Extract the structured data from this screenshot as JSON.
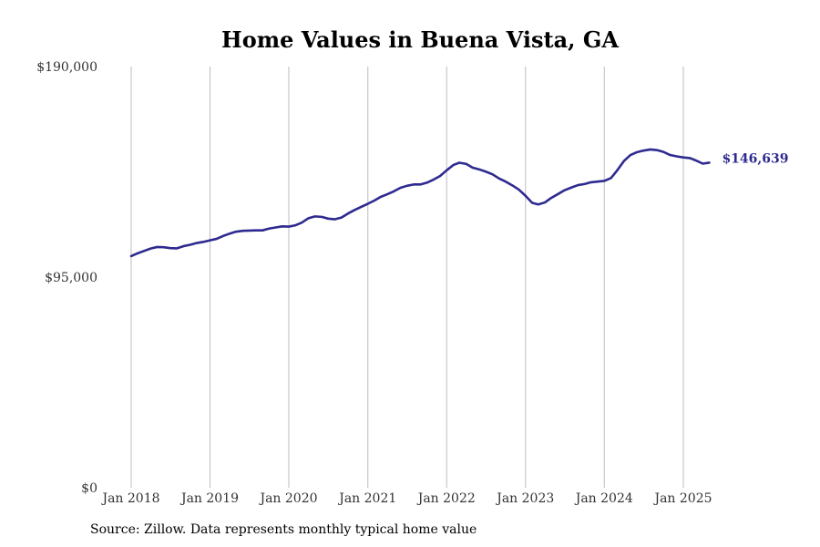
{
  "chart_data": {
    "type": "line",
    "title": "Home Values in Buena Vista, GA",
    "xlabel": "",
    "ylabel": "",
    "ylim": [
      0,
      190000
    ],
    "yticks": [
      {
        "value": 0,
        "label": "$0"
      },
      {
        "value": 95000,
        "label": "$95,000"
      },
      {
        "value": 190000,
        "label": "$190,000"
      }
    ],
    "xticks": [
      "Jan 2018",
      "Jan 2019",
      "Jan 2020",
      "Jan 2021",
      "Jan 2022",
      "Jan 2023",
      "Jan 2024",
      "Jan 2025"
    ],
    "grid": "vertical",
    "color": "#2e2a8f",
    "end_label": "$146,639",
    "series": [
      {
        "x": [
          "2018-01",
          "2018-02",
          "2018-03",
          "2018-04",
          "2018-05",
          "2018-06",
          "2018-07",
          "2018-08",
          "2018-09",
          "2018-10",
          "2018-11",
          "2018-12",
          "2019-01",
          "2019-02",
          "2019-03",
          "2019-04",
          "2019-05",
          "2019-06",
          "2019-07",
          "2019-08",
          "2019-09",
          "2019-10",
          "2019-11",
          "2019-12",
          "2020-01",
          "2020-02",
          "2020-03",
          "2020-04",
          "2020-05",
          "2020-06",
          "2020-07",
          "2020-08",
          "2020-09",
          "2020-10",
          "2020-11",
          "2020-12",
          "2021-01",
          "2021-02",
          "2021-03",
          "2021-04",
          "2021-05",
          "2021-06",
          "2021-07",
          "2021-08",
          "2021-09",
          "2021-10",
          "2021-11",
          "2021-12",
          "2022-01",
          "2022-02",
          "2022-03",
          "2022-04",
          "2022-05",
          "2022-06",
          "2022-07",
          "2022-08",
          "2022-09",
          "2022-10",
          "2022-11",
          "2022-12",
          "2023-01",
          "2023-02",
          "2023-03",
          "2023-04",
          "2023-05",
          "2023-06",
          "2023-07",
          "2023-08",
          "2023-09",
          "2023-10",
          "2023-11",
          "2023-12",
          "2024-01",
          "2024-02",
          "2024-03",
          "2024-04",
          "2024-05",
          "2024-06",
          "2024-07",
          "2024-08",
          "2024-09",
          "2024-10",
          "2024-11",
          "2024-12",
          "2025-01",
          "2025-02",
          "2025-03",
          "2025-04",
          "2025-05"
        ],
        "values": [
          104500,
          105800,
          106800,
          107900,
          108600,
          108500,
          108100,
          108000,
          109000,
          109600,
          110400,
          110900,
          111600,
          112300,
          113500,
          114600,
          115500,
          115900,
          116000,
          116100,
          116100,
          116900,
          117400,
          117900,
          117800,
          118400,
          119600,
          121600,
          122400,
          122200,
          121400,
          121100,
          121900,
          123700,
          125300,
          126700,
          128100,
          129600,
          131200,
          132400,
          133700,
          135300,
          136200,
          136800,
          136800,
          137600,
          139000,
          140600,
          143200,
          145600,
          146600,
          146100,
          144400,
          143600,
          142600,
          141400,
          139500,
          138100,
          136400,
          134500,
          131700,
          128500,
          127800,
          128700,
          130800,
          132500,
          134200,
          135400,
          136500,
          137000,
          137800,
          138100,
          138400,
          139700,
          143200,
          147400,
          150100,
          151400,
          152100,
          152600,
          152300,
          151500,
          150100,
          149500,
          149000,
          148700,
          147600,
          146200,
          146639
        ]
      }
    ]
  },
  "source_note": "Source: Zillow. Data represents monthly typical home value"
}
